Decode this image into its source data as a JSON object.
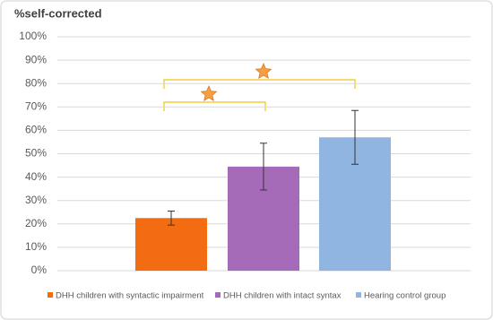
{
  "chart_data": {
    "type": "bar",
    "y_label": "%self-corrected",
    "categories": [
      null
    ],
    "series": [
      {
        "name": "DHH children with syntactic impairment",
        "color": "#f36c12",
        "values": [
          22.5
        ],
        "errors": [
          3
        ]
      },
      {
        "name": "DHH children with intact syntax",
        "color": "#a66bb8",
        "values": [
          44.5
        ],
        "errors": [
          10
        ]
      },
      {
        "name": "Hearing control group",
        "color": "#8fb5e0",
        "values": [
          57
        ],
        "errors": [
          11.5
        ]
      }
    ],
    "ylim": [
      0,
      100
    ],
    "yticks": [
      {
        "value": 0,
        "label": "0%"
      },
      {
        "value": 10,
        "label": "10%"
      },
      {
        "value": 20,
        "label": "20%"
      },
      {
        "value": 30,
        "label": "30%"
      },
      {
        "value": 40,
        "label": "40%"
      },
      {
        "value": 50,
        "label": "50%"
      },
      {
        "value": 60,
        "label": "60%"
      },
      {
        "value": 70,
        "label": "70%"
      },
      {
        "value": 80,
        "label": "80%"
      },
      {
        "value": 90,
        "label": "90%"
      },
      {
        "value": 100,
        "label": "100%"
      }
    ],
    "grid": true
  }
}
